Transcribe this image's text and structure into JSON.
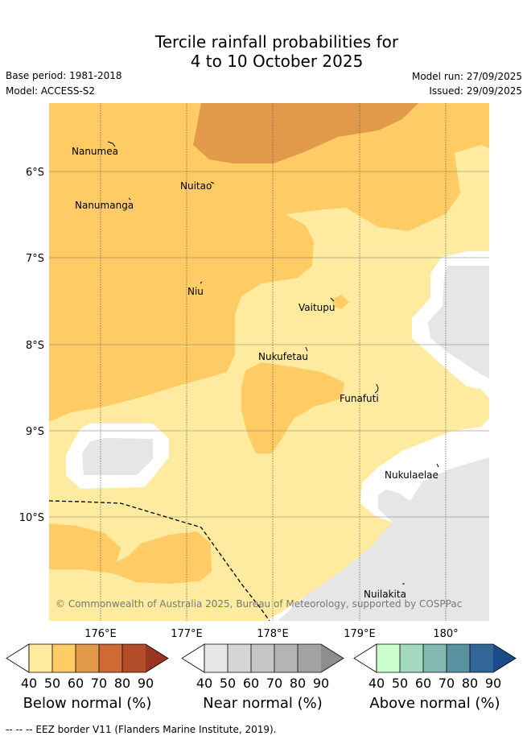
{
  "title": {
    "line1": "Tercile rainfall probabilities for",
    "line2": "4 to 10 October 2025"
  },
  "meta": {
    "base_period": "Base period: 1981-2018",
    "model": "Model: ACCESS-S2",
    "model_run": "Model run: 27/09/2025",
    "issued": "Issued: 29/09/2025"
  },
  "map": {
    "lat_labels": [
      "6°S",
      "7°S",
      "8°S",
      "9°S",
      "10°S"
    ],
    "lon_labels": [
      "176°E",
      "177°E",
      "178°E",
      "179°E",
      "180°"
    ],
    "places": [
      "Nanumea",
      "Nuitao",
      "Nanumanga",
      "Niu",
      "Vaitupu",
      "Nukufetau",
      "Funafuti",
      "Nukulaelae",
      "Nuilakita"
    ],
    "copyright": "© Commonwealth of Australia 2025, Bureau of Meteorology, supported by COSPPac",
    "colors": {
      "below_40": "#feeba0",
      "below_50": "#fecb65",
      "below_60": "#e3994a",
      "near_40": "#e6e6e6",
      "white": "#ffffff"
    }
  },
  "colorbars": [
    {
      "title": "Below normal (%)",
      "ticks": [
        "40",
        "50",
        "60",
        "70",
        "80",
        "90"
      ],
      "colors": [
        "#feeba0",
        "#fecb65",
        "#e3994a",
        "#d06a35",
        "#b34e2b",
        "#9a3524"
      ]
    },
    {
      "title": "Near normal (%)",
      "ticks": [
        "40",
        "50",
        "60",
        "70",
        "80",
        "90"
      ],
      "colors": [
        "#e6e6e6",
        "#d6d6d6",
        "#c6c6c6",
        "#b4b4b4",
        "#a2a2a2",
        "#8e8e8e"
      ]
    },
    {
      "title": "Above normal (%)",
      "ticks": [
        "40",
        "50",
        "60",
        "70",
        "80",
        "90"
      ],
      "colors": [
        "#cbfdcd",
        "#a4d9bd",
        "#81b8b2",
        "#5b92a1",
        "#326699",
        "#1a4c89"
      ]
    }
  ],
  "footer": {
    "legend_line": "--  --  -- EEZ border V11 (Flanders Marine Institute, 2019)."
  }
}
